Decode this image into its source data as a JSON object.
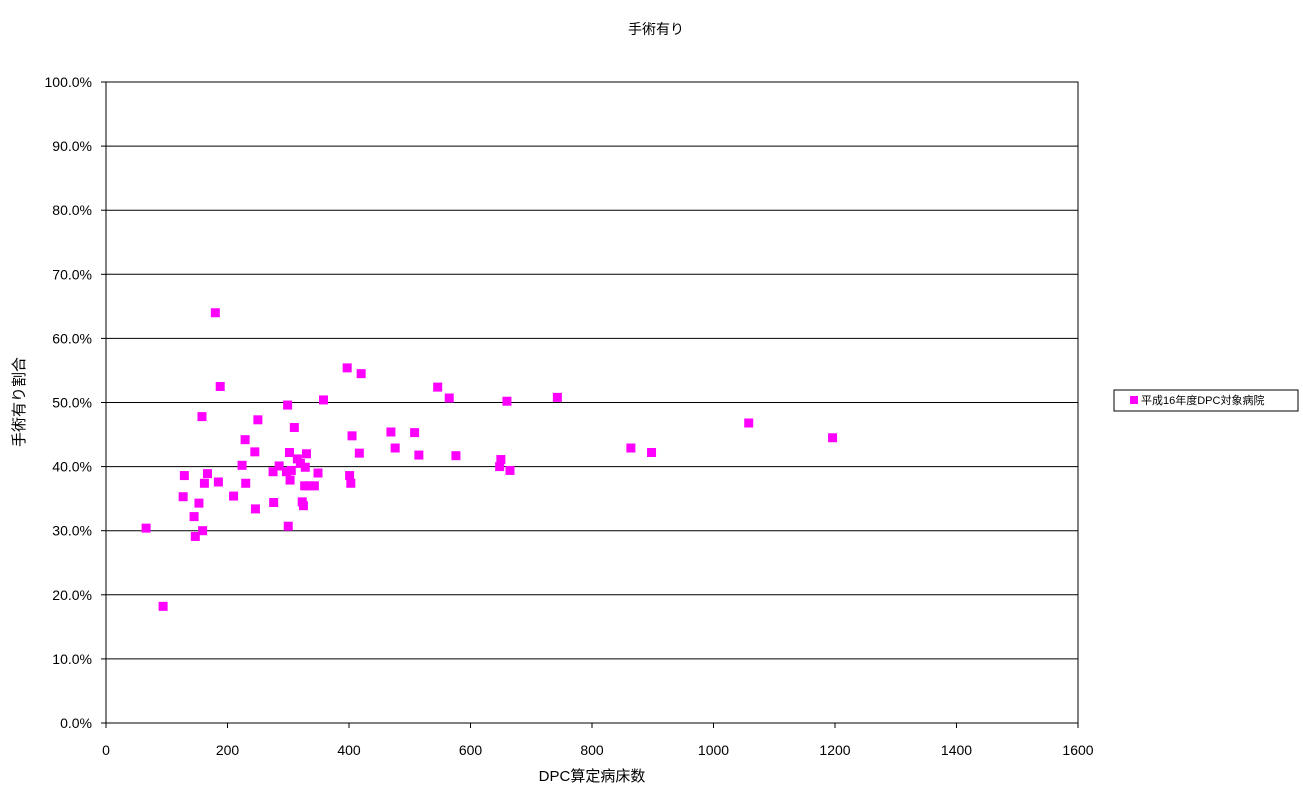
{
  "chart_data": {
    "type": "scatter",
    "title": "手術有り",
    "xlabel": "DPC算定病床数",
    "ylabel": "手術有り割合",
    "xlim": [
      0,
      1600
    ],
    "ylim": [
      0,
      100
    ],
    "x_ticks": [
      0,
      200,
      400,
      600,
      800,
      1000,
      1200,
      1400,
      1600
    ],
    "x_tick_labels": [
      "0",
      "200",
      "400",
      "600",
      "800",
      "1000",
      "1200",
      "1400",
      "1600"
    ],
    "y_ticks": [
      0,
      10,
      20,
      30,
      40,
      50,
      60,
      70,
      80,
      90,
      100
    ],
    "y_tick_labels": [
      "0.0%",
      "10.0%",
      "20.0%",
      "30.0%",
      "40.0%",
      "50.0%",
      "60.0%",
      "70.0%",
      "80.0%",
      "90.0%",
      "100.0%"
    ],
    "grid": "horizontal",
    "legend_position": "right",
    "series": [
      {
        "name": "平成16年度DPC対象病院",
        "color": "#ff00ff",
        "marker": "square",
        "points": [
          [
            66,
            30.4
          ],
          [
            94,
            18.2
          ],
          [
            127,
            35.3
          ],
          [
            129,
            38.6
          ],
          [
            145,
            32.2
          ],
          [
            147,
            29.1
          ],
          [
            153,
            34.3
          ],
          [
            158,
            47.8
          ],
          [
            159,
            30.0
          ],
          [
            162,
            37.4
          ],
          [
            167,
            38.9
          ],
          [
            180,
            64.0
          ],
          [
            185,
            37.6
          ],
          [
            188,
            52.5
          ],
          [
            210,
            35.4
          ],
          [
            224,
            40.2
          ],
          [
            229,
            44.2
          ],
          [
            230,
            37.4
          ],
          [
            245,
            42.3
          ],
          [
            246,
            33.4
          ],
          [
            250,
            47.3
          ],
          [
            275,
            39.2
          ],
          [
            276,
            34.4
          ],
          [
            285,
            40.1
          ],
          [
            297,
            39.2
          ],
          [
            299,
            49.6
          ],
          [
            300,
            30.7
          ],
          [
            302,
            42.2
          ],
          [
            303,
            37.9
          ],
          [
            305,
            39.4
          ],
          [
            310,
            46.1
          ],
          [
            315,
            41.2
          ],
          [
            320,
            40.5
          ],
          [
            323,
            34.5
          ],
          [
            325,
            33.9
          ],
          [
            327,
            37.0
          ],
          [
            328,
            39.9
          ],
          [
            330,
            42.0
          ],
          [
            335,
            37.0
          ],
          [
            343,
            37.0
          ],
          [
            349,
            39.0
          ],
          [
            358,
            50.4
          ],
          [
            397,
            55.4
          ],
          [
            401,
            38.6
          ],
          [
            403,
            37.4
          ],
          [
            405,
            44.8
          ],
          [
            417,
            42.1
          ],
          [
            420,
            54.5
          ],
          [
            469,
            45.4
          ],
          [
            476,
            42.9
          ],
          [
            508,
            45.3
          ],
          [
            515,
            41.8
          ],
          [
            546,
            52.4
          ],
          [
            565,
            50.7
          ],
          [
            576,
            41.7
          ],
          [
            648,
            40.0
          ],
          [
            650,
            41.1
          ],
          [
            660,
            50.2
          ],
          [
            665,
            39.4
          ],
          [
            743,
            50.8
          ],
          [
            864,
            42.9
          ],
          [
            898,
            42.2
          ],
          [
            1058,
            46.8
          ],
          [
            1196,
            44.5
          ]
        ]
      }
    ]
  }
}
